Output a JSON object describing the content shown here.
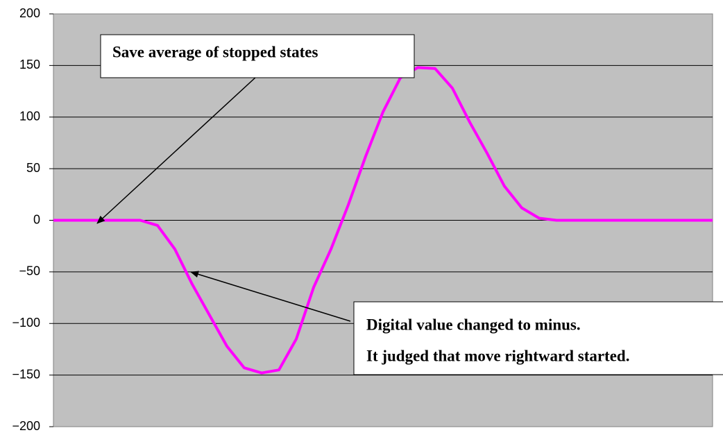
{
  "chart_data": {
    "type": "line",
    "categories": [
      null,
      null,
      null,
      null,
      null,
      null,
      null,
      null,
      null,
      null,
      null,
      null,
      null,
      null,
      null,
      null,
      null,
      null,
      null,
      null,
      null,
      null,
      null,
      null,
      null,
      null,
      null,
      null,
      null,
      null,
      null,
      null,
      null,
      null,
      null,
      null,
      null,
      null,
      null
    ],
    "series": [
      {
        "color": "#ff00ff",
        "values": [
          0,
          0,
          0,
          0,
          0,
          0,
          -5,
          -28,
          -62,
          -92,
          -122,
          -143,
          -148,
          -145,
          -115,
          -65,
          -28,
          15,
          62,
          105,
          138,
          148,
          147,
          128,
          95,
          65,
          33,
          12,
          2,
          0,
          0,
          0,
          0,
          0,
          0,
          0,
          0,
          0,
          0
        ]
      }
    ],
    "ylim": [
      -200,
      200
    ],
    "yticks": [
      {
        "value": -200,
        "label": "−200"
      },
      {
        "value": -150,
        "label": "−150"
      },
      {
        "value": -100,
        "label": "−100"
      },
      {
        "value": -50,
        "label": "−50"
      },
      0,
      50,
      100,
      150,
      200
    ],
    "grid": true,
    "annotations": [
      "Save average of stopped states",
      "Digital value changed to minus.",
      "It judged that move rightward started."
    ]
  }
}
